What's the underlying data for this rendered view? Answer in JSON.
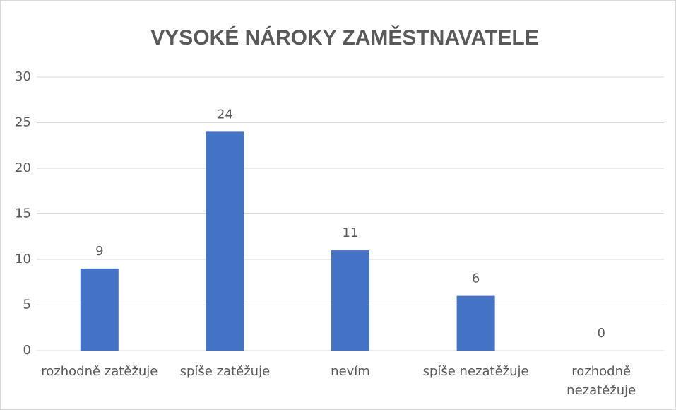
{
  "chart_data": {
    "type": "bar",
    "title": "VYSOKÉ NÁROKY ZAMĚSTNAVATELE",
    "categories": [
      "rozhodně zatěžuje",
      "spíše zatěžuje",
      "nevím",
      "spíše nezatěžuje",
      "rozhodně nezatěžuje"
    ],
    "values": [
      9,
      24,
      11,
      6,
      0
    ],
    "color": "#4472c4",
    "ylim": [
      0,
      30
    ],
    "yticks": [
      0,
      5,
      10,
      15,
      20,
      25,
      30
    ],
    "grid": true
  }
}
